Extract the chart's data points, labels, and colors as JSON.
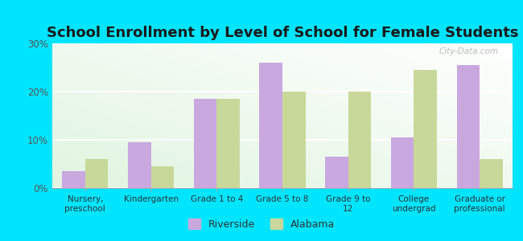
{
  "title": "School Enrollment by Level of School for Female Students",
  "categories": [
    "Nursery,\npreschool",
    "Kindergarten",
    "Grade 1 to 4",
    "Grade 5 to 8",
    "Grade 9 to\n12",
    "College\nundergrad",
    "Graduate or\nprofessional"
  ],
  "riverside": [
    3.5,
    9.5,
    18.5,
    26.0,
    6.5,
    10.5,
    25.5
  ],
  "alabama": [
    6.0,
    4.5,
    18.5,
    20.0,
    20.0,
    24.5,
    6.0
  ],
  "riverside_color": "#c9a8e0",
  "alabama_color": "#c8d89a",
  "background_outer": "#00e5ff",
  "ylim": [
    0,
    30
  ],
  "yticks": [
    0,
    10,
    20,
    30
  ],
  "ytick_labels": [
    "0%",
    "10%",
    "20%",
    "30%"
  ],
  "legend_riverside": "Riverside",
  "legend_alabama": "Alabama",
  "title_fontsize": 13,
  "watermark": "City-Data.com"
}
